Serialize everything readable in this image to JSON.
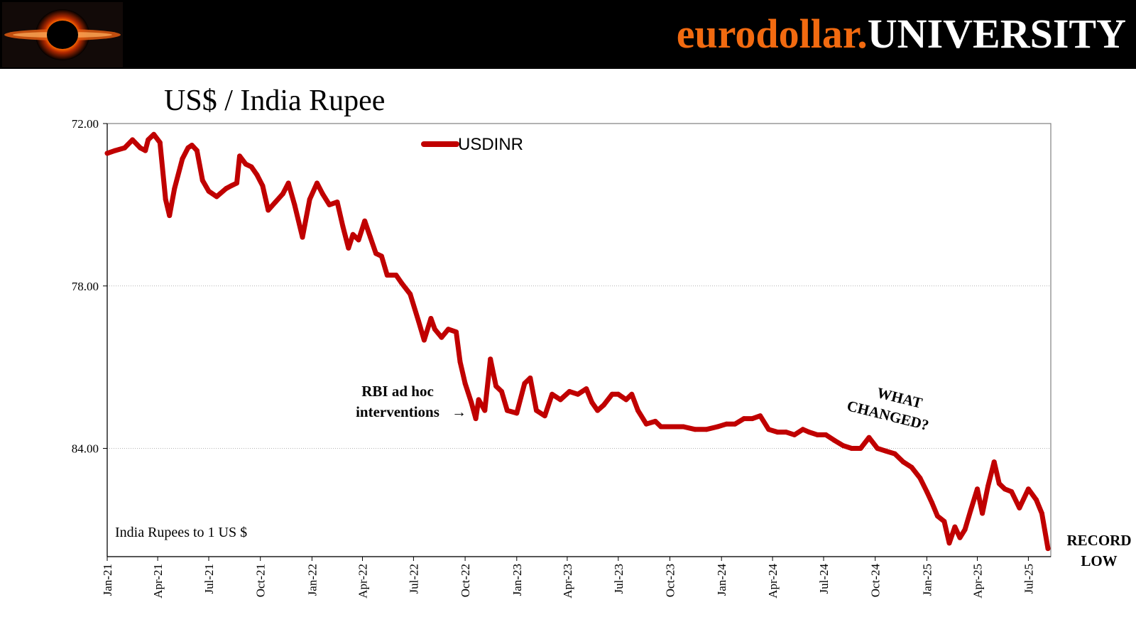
{
  "header": {
    "brand_part1": "eurodollar.",
    "brand_part2": "UNIVERSITY",
    "logo_icon": "black-hole-logo-icon",
    "colors": {
      "background": "#000000",
      "brand_orange": "#f26a10",
      "brand_white": "#ffffff"
    }
  },
  "chart_data": {
    "type": "line",
    "title": "US$ / India Rupee",
    "ylabel": "",
    "xlabel": "",
    "y_axis_reversed": true,
    "ylim": [
      72,
      88
    ],
    "y_ticks": [
      72,
      78,
      84
    ],
    "y_tick_labels": [
      "72.00",
      "78.00",
      "84.00"
    ],
    "grid": "horizontal dotted",
    "legend_position": "top-center",
    "x_tick_labels": [
      "Jan-21",
      "Apr-21",
      "Jul-21",
      "Oct-21",
      "Jan-22",
      "Apr-22",
      "Jul-22",
      "Oct-22",
      "Jan-23",
      "Apr-23",
      "Jul-23",
      "Oct-23",
      "Jan-24",
      "Apr-24",
      "Jul-24",
      "Oct-24",
      "Jan-25",
      "Apr-25",
      "Jul-25"
    ],
    "x_start": "2021-01-01",
    "x_end": "2025-08-10",
    "series": [
      {
        "name": "USDINR",
        "color": "#c00000",
        "points": [
          [
            "2021-01-01",
            73.1
          ],
          [
            "2021-01-15",
            73.0
          ],
          [
            "2021-02-01",
            72.9
          ],
          [
            "2021-02-15",
            72.6
          ],
          [
            "2021-03-01",
            72.9
          ],
          [
            "2021-03-10",
            73.0
          ],
          [
            "2021-03-15",
            72.6
          ],
          [
            "2021-03-25",
            72.4
          ],
          [
            "2021-04-05",
            72.7
          ],
          [
            "2021-04-15",
            74.8
          ],
          [
            "2021-04-22",
            75.4
          ],
          [
            "2021-05-01",
            74.4
          ],
          [
            "2021-05-15",
            73.3
          ],
          [
            "2021-05-25",
            72.9
          ],
          [
            "2021-06-01",
            72.8
          ],
          [
            "2021-06-10",
            73.0
          ],
          [
            "2021-06-20",
            74.1
          ],
          [
            "2021-07-01",
            74.5
          ],
          [
            "2021-07-15",
            74.7
          ],
          [
            "2021-08-01",
            74.4
          ],
          [
            "2021-08-10",
            74.3
          ],
          [
            "2021-08-20",
            74.2
          ],
          [
            "2021-08-25",
            73.2
          ],
          [
            "2021-09-05",
            73.5
          ],
          [
            "2021-09-15",
            73.6
          ],
          [
            "2021-09-25",
            73.9
          ],
          [
            "2021-10-05",
            74.3
          ],
          [
            "2021-10-15",
            75.2
          ],
          [
            "2021-10-28",
            74.9
          ],
          [
            "2021-11-10",
            74.6
          ],
          [
            "2021-11-20",
            74.2
          ],
          [
            "2021-12-01",
            75.0
          ],
          [
            "2021-12-15",
            76.2
          ],
          [
            "2021-12-28",
            74.8
          ],
          [
            "2022-01-10",
            74.2
          ],
          [
            "2022-01-20",
            74.6
          ],
          [
            "2022-02-01",
            75.0
          ],
          [
            "2022-02-15",
            74.9
          ],
          [
            "2022-02-25",
            75.8
          ],
          [
            "2022-03-07",
            76.6
          ],
          [
            "2022-03-15",
            76.1
          ],
          [
            "2022-03-25",
            76.3
          ],
          [
            "2022-04-05",
            75.6
          ],
          [
            "2022-04-15",
            76.2
          ],
          [
            "2022-04-25",
            76.8
          ],
          [
            "2022-05-05",
            76.9
          ],
          [
            "2022-05-15",
            77.6
          ],
          [
            "2022-05-31",
            77.6
          ],
          [
            "2022-06-10",
            77.9
          ],
          [
            "2022-06-25",
            78.3
          ],
          [
            "2022-07-10",
            79.3
          ],
          [
            "2022-07-20",
            80.0
          ],
          [
            "2022-08-01",
            79.2
          ],
          [
            "2022-08-08",
            79.6
          ],
          [
            "2022-08-20",
            79.9
          ],
          [
            "2022-09-01",
            79.6
          ],
          [
            "2022-09-15",
            79.7
          ],
          [
            "2022-09-22",
            80.8
          ],
          [
            "2022-10-01",
            81.6
          ],
          [
            "2022-10-12",
            82.3
          ],
          [
            "2022-10-20",
            82.9
          ],
          [
            "2022-10-25",
            82.2
          ],
          [
            "2022-11-05",
            82.6
          ],
          [
            "2022-11-15",
            80.7
          ],
          [
            "2022-11-25",
            81.7
          ],
          [
            "2022-12-05",
            81.9
          ],
          [
            "2022-12-15",
            82.6
          ],
          [
            "2023-01-01",
            82.7
          ],
          [
            "2023-01-15",
            81.6
          ],
          [
            "2023-01-25",
            81.4
          ],
          [
            "2023-02-05",
            82.6
          ],
          [
            "2023-02-20",
            82.8
          ],
          [
            "2023-03-05",
            82.0
          ],
          [
            "2023-03-20",
            82.2
          ],
          [
            "2023-04-05",
            81.9
          ],
          [
            "2023-04-20",
            82.0
          ],
          [
            "2023-05-05",
            81.8
          ],
          [
            "2023-05-15",
            82.3
          ],
          [
            "2023-05-25",
            82.6
          ],
          [
            "2023-06-05",
            82.4
          ],
          [
            "2023-06-20",
            82.0
          ],
          [
            "2023-07-01",
            82.0
          ],
          [
            "2023-07-15",
            82.2
          ],
          [
            "2023-07-25",
            82.0
          ],
          [
            "2023-08-05",
            82.6
          ],
          [
            "2023-08-20",
            83.1
          ],
          [
            "2023-09-05",
            83.0
          ],
          [
            "2023-09-15",
            83.2
          ],
          [
            "2023-10-05",
            83.2
          ],
          [
            "2023-10-25",
            83.2
          ],
          [
            "2023-11-15",
            83.3
          ],
          [
            "2023-12-05",
            83.3
          ],
          [
            "2023-12-25",
            83.2
          ],
          [
            "2024-01-10",
            83.1
          ],
          [
            "2024-01-25",
            83.1
          ],
          [
            "2024-02-10",
            82.9
          ],
          [
            "2024-02-25",
            82.9
          ],
          [
            "2024-03-10",
            82.8
          ],
          [
            "2024-03-25",
            83.3
          ],
          [
            "2024-04-10",
            83.4
          ],
          [
            "2024-04-25",
            83.4
          ],
          [
            "2024-05-10",
            83.5
          ],
          [
            "2024-05-25",
            83.3
          ],
          [
            "2024-06-05",
            83.4
          ],
          [
            "2024-06-20",
            83.5
          ],
          [
            "2024-07-05",
            83.5
          ],
          [
            "2024-07-20",
            83.7
          ],
          [
            "2024-08-05",
            83.9
          ],
          [
            "2024-08-20",
            84.0
          ],
          [
            "2024-09-05",
            84.0
          ],
          [
            "2024-09-20",
            83.6
          ],
          [
            "2024-10-05",
            84.0
          ],
          [
            "2024-10-20",
            84.1
          ],
          [
            "2024-11-05",
            84.2
          ],
          [
            "2024-11-20",
            84.5
          ],
          [
            "2024-12-05",
            84.7
          ],
          [
            "2024-12-20",
            85.1
          ],
          [
            "2025-01-01",
            85.6
          ],
          [
            "2025-01-10",
            86.0
          ],
          [
            "2025-01-20",
            86.5
          ],
          [
            "2025-02-01",
            86.7
          ],
          [
            "2025-02-10",
            87.5
          ],
          [
            "2025-02-20",
            86.9
          ],
          [
            "2025-03-01",
            87.3
          ],
          [
            "2025-03-10",
            87.0
          ],
          [
            "2025-03-20",
            86.3
          ],
          [
            "2025-04-01",
            85.5
          ],
          [
            "2025-04-10",
            86.4
          ],
          [
            "2025-04-20",
            85.4
          ],
          [
            "2025-05-01",
            84.5
          ],
          [
            "2025-05-10",
            85.3
          ],
          [
            "2025-05-20",
            85.5
          ],
          [
            "2025-06-01",
            85.6
          ],
          [
            "2025-06-15",
            86.2
          ],
          [
            "2025-07-01",
            85.5
          ],
          [
            "2025-07-15",
            85.9
          ],
          [
            "2025-07-25",
            86.4
          ],
          [
            "2025-08-05",
            87.7
          ]
        ]
      }
    ],
    "annotations": {
      "rbi_line1": "RBI ad hoc",
      "rbi_line2": "interventions",
      "rbi_arrow": "→",
      "what_line1": "WHAT",
      "what_line2": "CHANGED?",
      "record_line1": "RECORD",
      "record_line2": "LOW",
      "units_note": "India Rupees to 1 US $"
    }
  }
}
